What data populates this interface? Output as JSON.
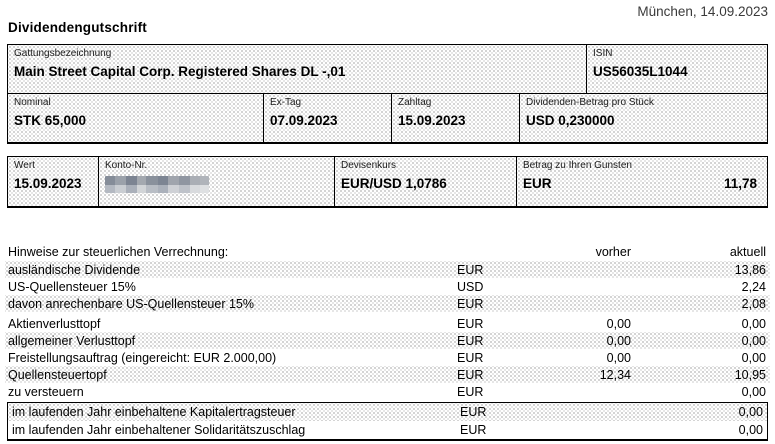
{
  "header": {
    "city_date": "München, 14.09.2023",
    "title": "Dividendengutschrift"
  },
  "security_table": {
    "gattung": {
      "label": "Gattungsbezeichnung",
      "value": "Main Street Capital Corp. Registered Shares DL -,01"
    },
    "isin": {
      "label": "ISIN",
      "value": "US56035L1044"
    },
    "nominal": {
      "label": "Nominal",
      "value": "STK 65,000"
    },
    "ex_tag": {
      "label": "Ex-Tag",
      "value": "07.09.2023"
    },
    "zahltag": {
      "label": "Zahltag",
      "value": "15.09.2023"
    },
    "dividende": {
      "label": "Dividenden-Betrag pro Stück",
      "value": "USD 0,230000"
    }
  },
  "payment_table": {
    "wert": {
      "label": "Wert",
      "value": "15.09.2023"
    },
    "konto": {
      "label": "Konto-Nr.",
      "value_redacted": true
    },
    "devisenkurs": {
      "label": "Devisenkurs",
      "value": "EUR/USD 1,0786"
    },
    "betrag": {
      "label": "Betrag zu Ihren Gunsten",
      "currency": "EUR",
      "amount": "11,78"
    }
  },
  "tax_section": {
    "heading": "Hinweise zur steuerlichen Verrechnung:",
    "columns": {
      "vorher": "vorher",
      "aktuell": "aktuell"
    },
    "rows": [
      {
        "label": "ausländische Dividende",
        "currency": "EUR",
        "vorher": "",
        "aktuell": "13,86"
      },
      {
        "label": "US-Quellensteuer 15%",
        "currency": "USD",
        "vorher": "",
        "aktuell": "2,24"
      },
      {
        "label": "davon anrechenbare US-Quellensteuer 15%",
        "currency": "EUR",
        "vorher": "",
        "aktuell": "2,08"
      },
      {
        "label": "Aktienverlusttopf",
        "currency": "EUR",
        "vorher": "0,00",
        "aktuell": "0,00"
      },
      {
        "label": "allgemeiner Verlusttopf",
        "currency": "EUR",
        "vorher": "0,00",
        "aktuell": "0,00"
      },
      {
        "label": "Freistellungsauftrag (eingereicht: EUR 2.000,00)",
        "currency": "EUR",
        "vorher": "0,00",
        "aktuell": "0,00"
      },
      {
        "label": "Quellensteuertopf",
        "currency": "EUR",
        "vorher": "12,34",
        "aktuell": "10,95"
      },
      {
        "label": "zu versteuern",
        "currency": "EUR",
        "vorher": "",
        "aktuell": "0,00"
      }
    ],
    "boxed_rows": [
      {
        "label": "im laufenden Jahr einbehaltene Kapitalertragsteuer",
        "currency": "EUR",
        "vorher": "",
        "aktuell": "0,00"
      },
      {
        "label": "im laufenden Jahr einbehaltener Solidaritätszuschlag",
        "currency": "EUR",
        "vorher": "",
        "aktuell": "0,00"
      }
    ]
  }
}
